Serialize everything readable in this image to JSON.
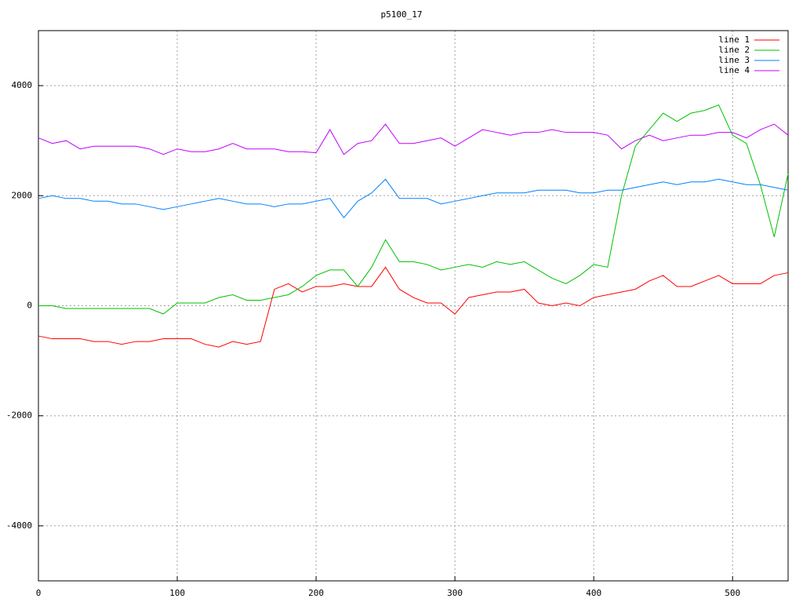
{
  "chart_data": {
    "type": "line",
    "title": "p5100_17",
    "x": [
      0,
      10,
      20,
      30,
      40,
      50,
      60,
      70,
      80,
      90,
      100,
      110,
      120,
      130,
      140,
      150,
      160,
      170,
      180,
      190,
      200,
      210,
      220,
      230,
      240,
      250,
      260,
      270,
      280,
      290,
      300,
      310,
      320,
      330,
      340,
      350,
      360,
      370,
      380,
      390,
      400,
      410,
      420,
      430,
      440,
      450,
      460,
      470,
      480,
      490,
      500,
      510,
      520,
      530,
      540
    ],
    "series": [
      {
        "name": "line 1",
        "color": "#ff0000",
        "values": [
          -550,
          -600,
          -600,
          -600,
          -650,
          -650,
          -700,
          -650,
          -650,
          -600,
          -600,
          -600,
          -700,
          -750,
          -650,
          -700,
          -650,
          300,
          400,
          250,
          350,
          350,
          400,
          350,
          350,
          700,
          300,
          150,
          50,
          50,
          -150,
          150,
          200,
          250,
          250,
          300,
          50,
          0,
          50,
          0,
          150,
          200,
          250,
          300,
          450,
          550,
          350,
          350,
          450,
          550,
          400,
          400,
          400,
          550,
          600
        ]
      },
      {
        "name": "line 2",
        "color": "#00c000",
        "values": [
          0,
          0,
          -50,
          -50,
          -50,
          -50,
          -50,
          -50,
          -50,
          -150,
          50,
          50,
          50,
          150,
          200,
          100,
          100,
          150,
          200,
          350,
          550,
          650,
          650,
          350,
          700,
          1200,
          800,
          800,
          750,
          650,
          700,
          750,
          700,
          800,
          750,
          800,
          650,
          500,
          400,
          550,
          750,
          700,
          2000,
          2900,
          3200,
          3500,
          3350,
          3500,
          3550,
          3650,
          3100,
          2950,
          2200,
          1250,
          2400
        ]
      },
      {
        "name": "line 3",
        "color": "#0080ff",
        "values": [
          1950,
          2000,
          1950,
          1950,
          1900,
          1900,
          1850,
          1850,
          1800,
          1750,
          1800,
          1850,
          1900,
          1950,
          1900,
          1850,
          1850,
          1800,
          1850,
          1850,
          1900,
          1950,
          1600,
          1900,
          2050,
          2300,
          1950,
          1950,
          1950,
          1850,
          1900,
          1950,
          2000,
          2050,
          2050,
          2050,
          2100,
          2100,
          2100,
          2050,
          2050,
          2100,
          2100,
          2150,
          2200,
          2250,
          2200,
          2250,
          2250,
          2300,
          2250,
          2200,
          2200,
          2150,
          2100
        ]
      },
      {
        "name": "line 4",
        "color": "#c000ff",
        "values": [
          3050,
          2950,
          3000,
          2850,
          2900,
          2900,
          2900,
          2900,
          2850,
          2750,
          2850,
          2800,
          2800,
          2850,
          2950,
          2850,
          2850,
          2850,
          2800,
          2800,
          2780,
          3200,
          2750,
          2950,
          3000,
          3300,
          2950,
          2950,
          3000,
          3050,
          2900,
          3050,
          3200,
          3150,
          3100,
          3150,
          3150,
          3200,
          3150,
          3150,
          3150,
          3100,
          2850,
          3000,
          3100,
          3000,
          3050,
          3100,
          3100,
          3150,
          3150,
          3050,
          3200,
          3300,
          3100
        ]
      }
    ],
    "xlim": [
      0,
      540
    ],
    "xticks": [
      0,
      100,
      200,
      300,
      400,
      500
    ],
    "ylim": [
      -5000,
      5000
    ],
    "yticks": [
      -4000,
      -2000,
      0,
      2000,
      4000
    ],
    "grid": true,
    "legend": "top-right"
  }
}
